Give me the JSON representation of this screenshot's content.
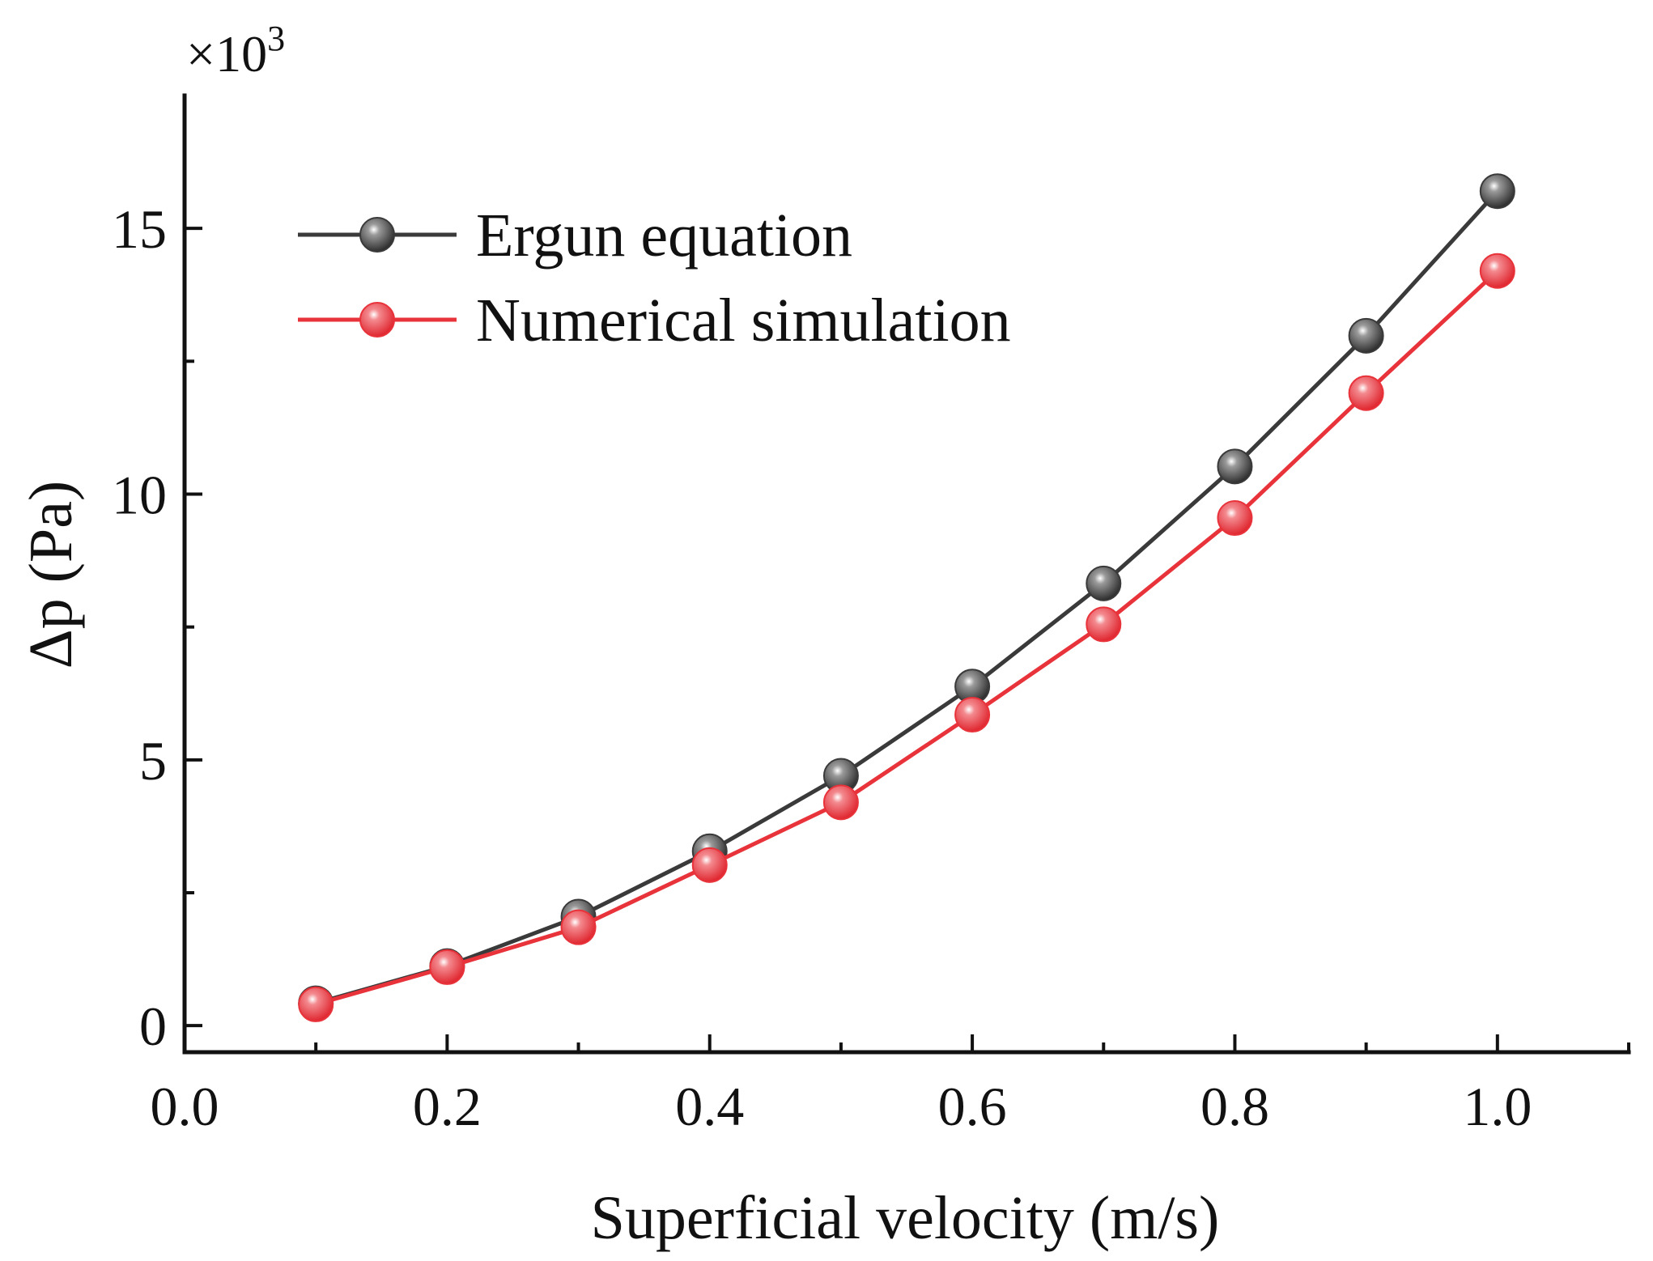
{
  "chart_data": {
    "type": "line",
    "title": "",
    "xlabel": "Superficial velocity (m/s)",
    "ylabel": "Δp (Pa)",
    "y_multiplier": {
      "base": "×10",
      "exponent": "3"
    },
    "xlim": [
      0.0,
      1.1
    ],
    "ylim": [
      -0.5,
      17.5
    ],
    "x_ticks": [
      0.0,
      0.2,
      0.4,
      0.6,
      0.8,
      1.0
    ],
    "x_tick_labels": [
      "0.0",
      "0.2",
      "0.4",
      "0.6",
      "0.8",
      "1.0"
    ],
    "x_minor_ticks": [
      0.1,
      0.3,
      0.5,
      0.7,
      0.9,
      1.1
    ],
    "y_ticks": [
      0,
      5,
      10,
      15
    ],
    "y_tick_labels": [
      "0",
      "5",
      "10",
      "15"
    ],
    "y_minor_ticks": [
      2.5,
      7.5,
      12.5
    ],
    "grid": false,
    "legend_position": "top-left",
    "x": [
      0.1,
      0.2,
      0.3,
      0.4,
      0.5,
      0.6,
      0.7,
      0.8,
      0.9,
      1.0
    ],
    "series": [
      {
        "name": "Ergun equation",
        "color": "#3a3a3a",
        "values": [
          0.42,
          1.12,
          2.05,
          3.28,
          4.7,
          6.38,
          8.32,
          10.52,
          12.98,
          15.7
        ]
      },
      {
        "name": "Numerical simulation",
        "color": "#e8333b",
        "values": [
          0.4,
          1.1,
          1.85,
          3.02,
          4.2,
          5.85,
          7.55,
          9.55,
          11.9,
          14.2
        ]
      }
    ]
  }
}
